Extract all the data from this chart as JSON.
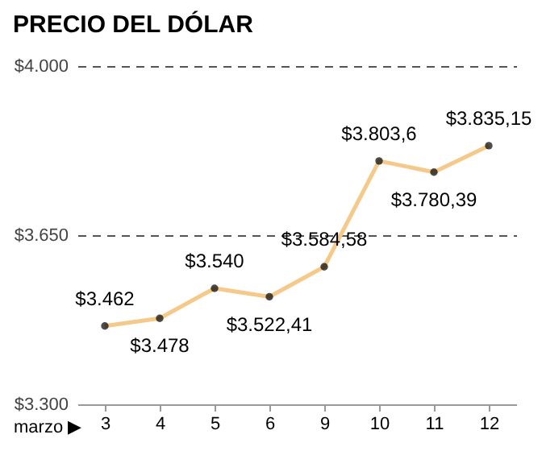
{
  "chart_data": {
    "type": "line",
    "title": "PRECIO DEL DÓLAR",
    "xlabel": "marzo ▶",
    "categories": [
      "3",
      "4",
      "5",
      "6",
      "9",
      "10",
      "11",
      "12"
    ],
    "series": [
      {
        "color": "#f5c98a",
        "values": [
          3462,
          3478,
          3540,
          3522.41,
          3584.58,
          3803.6,
          3780.39,
          3835.15
        ],
        "value_labels": [
          "$3.462",
          "$3.478",
          "$3.540",
          "$3.522,41",
          "$3.584,58",
          "$3.803,6",
          "$3.780,39",
          "$3.835,15"
        ]
      }
    ],
    "ylim": [
      3300,
      4000
    ],
    "yticks": [
      {
        "value": 3300,
        "label": "$3.300"
      },
      {
        "value": 3650,
        "label": "$3.650"
      },
      {
        "value": 4000,
        "label": "$4.000"
      }
    ],
    "grid": "y",
    "marker": "circle"
  }
}
